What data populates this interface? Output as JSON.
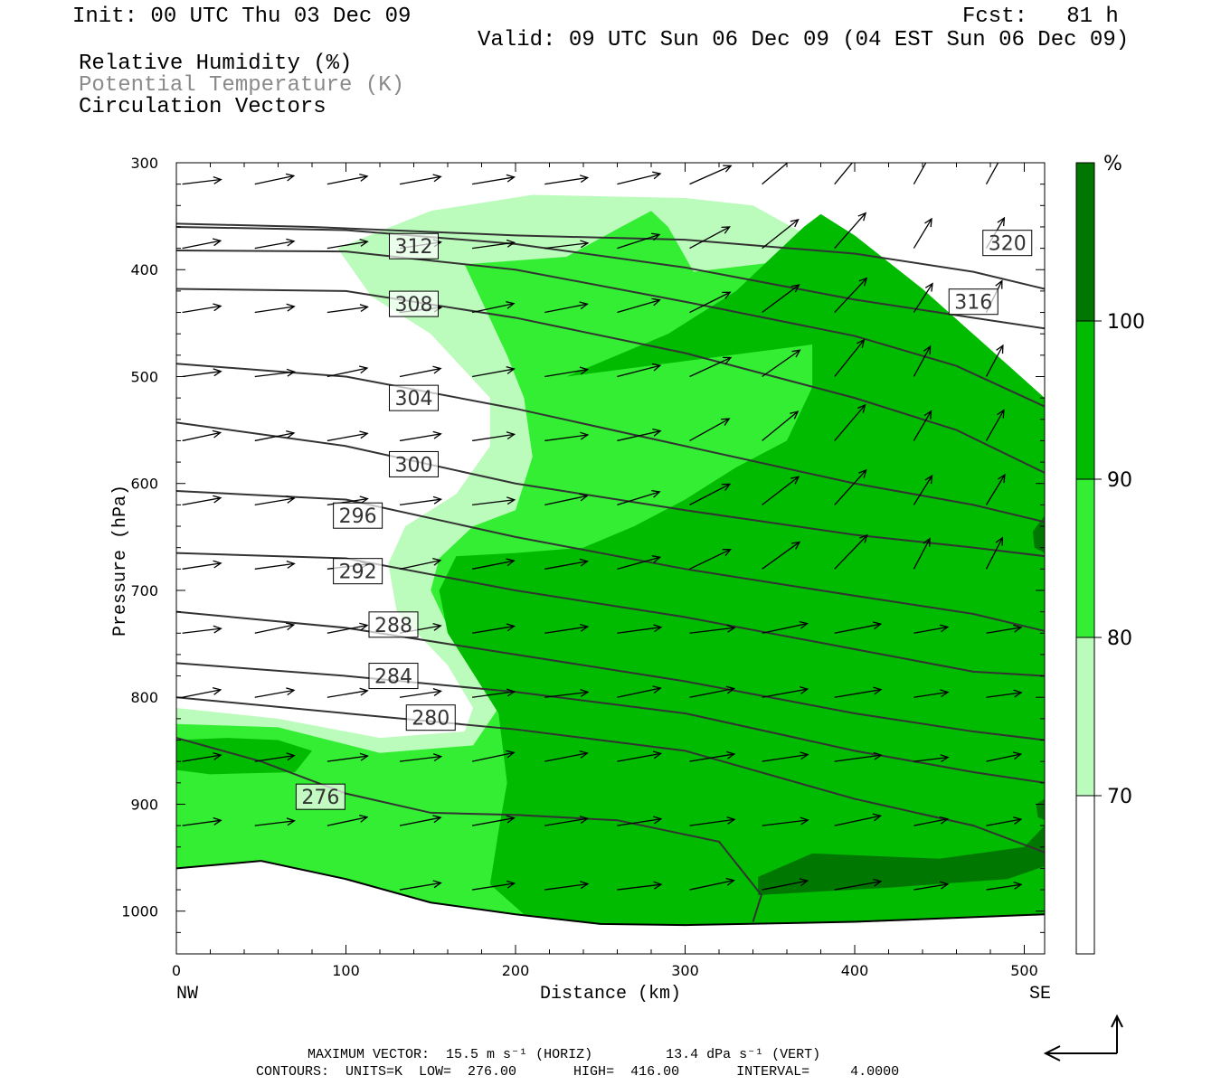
{
  "header": {
    "init": "Init: 00 UTC Thu 03 Dec 09",
    "fcst": "Fcst:   81 h",
    "valid": "Valid: 09 UTC Sun 06 Dec 09 (04 EST Sun 06 Dec 09)",
    "fields": [
      "Relative Humidity (%)",
      "Potential Temperature (K)",
      "Circulation Vectors"
    ]
  },
  "chart_data": {
    "type": "cross-section",
    "xlabel": "Distance (km)",
    "ylabel": "Pressure (hPa)",
    "x_endpoints": [
      "NW",
      "SE"
    ],
    "xlim": [
      0,
      512
    ],
    "ylim": [
      1040,
      300
    ],
    "x_ticks": [
      0,
      100,
      200,
      300,
      400,
      500
    ],
    "y_ticks": [
      300,
      400,
      500,
      600,
      700,
      800,
      900,
      1000
    ],
    "colorbar": {
      "unit": "%",
      "levels": [
        70,
        80,
        90,
        100
      ],
      "colors": [
        "#ffffff",
        "#bbfbbb",
        "#33ee33",
        "#00bb00",
        "#007700"
      ]
    },
    "theta_contours": [
      {
        "label": "320",
        "points": [
          [
            0,
            357
          ],
          [
            80,
            360
          ],
          [
            200,
            368
          ],
          [
            300,
            372
          ],
          [
            400,
            385
          ],
          [
            470,
            402
          ],
          [
            512,
            418
          ]
        ]
      },
      {
        "label": "316",
        "points": [
          [
            0,
            360
          ],
          [
            100,
            363
          ],
          [
            200,
            376
          ],
          [
            300,
            398
          ],
          [
            400,
            428
          ],
          [
            470,
            445
          ],
          [
            512,
            455
          ]
        ]
      },
      {
        "label": "312",
        "points": [
          [
            0,
            382
          ],
          [
            100,
            383
          ],
          [
            200,
            400
          ],
          [
            300,
            430
          ],
          [
            400,
            462
          ],
          [
            460,
            490
          ],
          [
            512,
            528
          ]
        ]
      },
      {
        "label": "308",
        "points": [
          [
            0,
            418
          ],
          [
            100,
            420
          ],
          [
            200,
            445
          ],
          [
            300,
            478
          ],
          [
            400,
            520
          ],
          [
            460,
            550
          ],
          [
            512,
            590
          ]
        ]
      },
      {
        "label": "304",
        "points": [
          [
            0,
            488
          ],
          [
            100,
            500
          ],
          [
            200,
            530
          ],
          [
            300,
            565
          ],
          [
            400,
            600
          ],
          [
            470,
            620
          ],
          [
            512,
            636
          ]
        ]
      },
      {
        "label": "300",
        "points": [
          [
            0,
            543
          ],
          [
            100,
            565
          ],
          [
            200,
            600
          ],
          [
            300,
            625
          ],
          [
            400,
            648
          ],
          [
            470,
            660
          ],
          [
            512,
            668
          ]
        ]
      },
      {
        "label": "296",
        "points": [
          [
            0,
            607
          ],
          [
            100,
            615
          ],
          [
            200,
            650
          ],
          [
            300,
            680
          ],
          [
            400,
            705
          ],
          [
            470,
            722
          ],
          [
            512,
            738
          ]
        ]
      },
      {
        "label": "292",
        "points": [
          [
            0,
            665
          ],
          [
            100,
            670
          ],
          [
            200,
            700
          ],
          [
            300,
            725
          ],
          [
            400,
            755
          ],
          [
            470,
            776
          ],
          [
            512,
            780
          ]
        ]
      },
      {
        "label": "288",
        "points": [
          [
            0,
            720
          ],
          [
            100,
            735
          ],
          [
            200,
            760
          ],
          [
            300,
            785
          ],
          [
            400,
            815
          ],
          [
            470,
            832
          ],
          [
            512,
            840
          ]
        ]
      },
      {
        "label": "284",
        "points": [
          [
            0,
            768
          ],
          [
            100,
            780
          ],
          [
            200,
            795
          ],
          [
            300,
            815
          ],
          [
            400,
            850
          ],
          [
            470,
            870
          ],
          [
            512,
            880
          ]
        ]
      },
      {
        "label": "280",
        "points": [
          [
            0,
            800
          ],
          [
            100,
            815
          ],
          [
            200,
            830
          ],
          [
            300,
            850
          ],
          [
            400,
            895
          ],
          [
            470,
            920
          ],
          [
            512,
            945
          ]
        ]
      },
      {
        "label": "276",
        "points": [
          [
            0,
            838
          ],
          [
            50,
            860
          ],
          [
            100,
            890
          ],
          [
            150,
            908
          ],
          [
            200,
            910
          ],
          [
            260,
            915
          ],
          [
            320,
            935
          ],
          [
            345,
            985
          ],
          [
            340,
            1010
          ]
        ]
      }
    ],
    "terrain": [
      [
        0,
        960
      ],
      [
        50,
        953
      ],
      [
        100,
        970
      ],
      [
        150,
        992
      ],
      [
        200,
        1003
      ],
      [
        250,
        1012
      ],
      [
        300,
        1013
      ],
      [
        400,
        1010
      ],
      [
        512,
        1003
      ]
    ],
    "vectors_note": "circulation vectors (horizontal wind mostly westerly, rising motion in SE half)"
  },
  "footer": {
    "max_vector": "MAXIMUM VECTOR:  15.5 m s⁻¹ (HORIZ)         13.4 dPa s⁻¹ (VERT)",
    "contours": "CONTOURS:  UNITS=K  LOW=  276.00       HIGH=  416.00       INTERVAL=     4.0000"
  }
}
